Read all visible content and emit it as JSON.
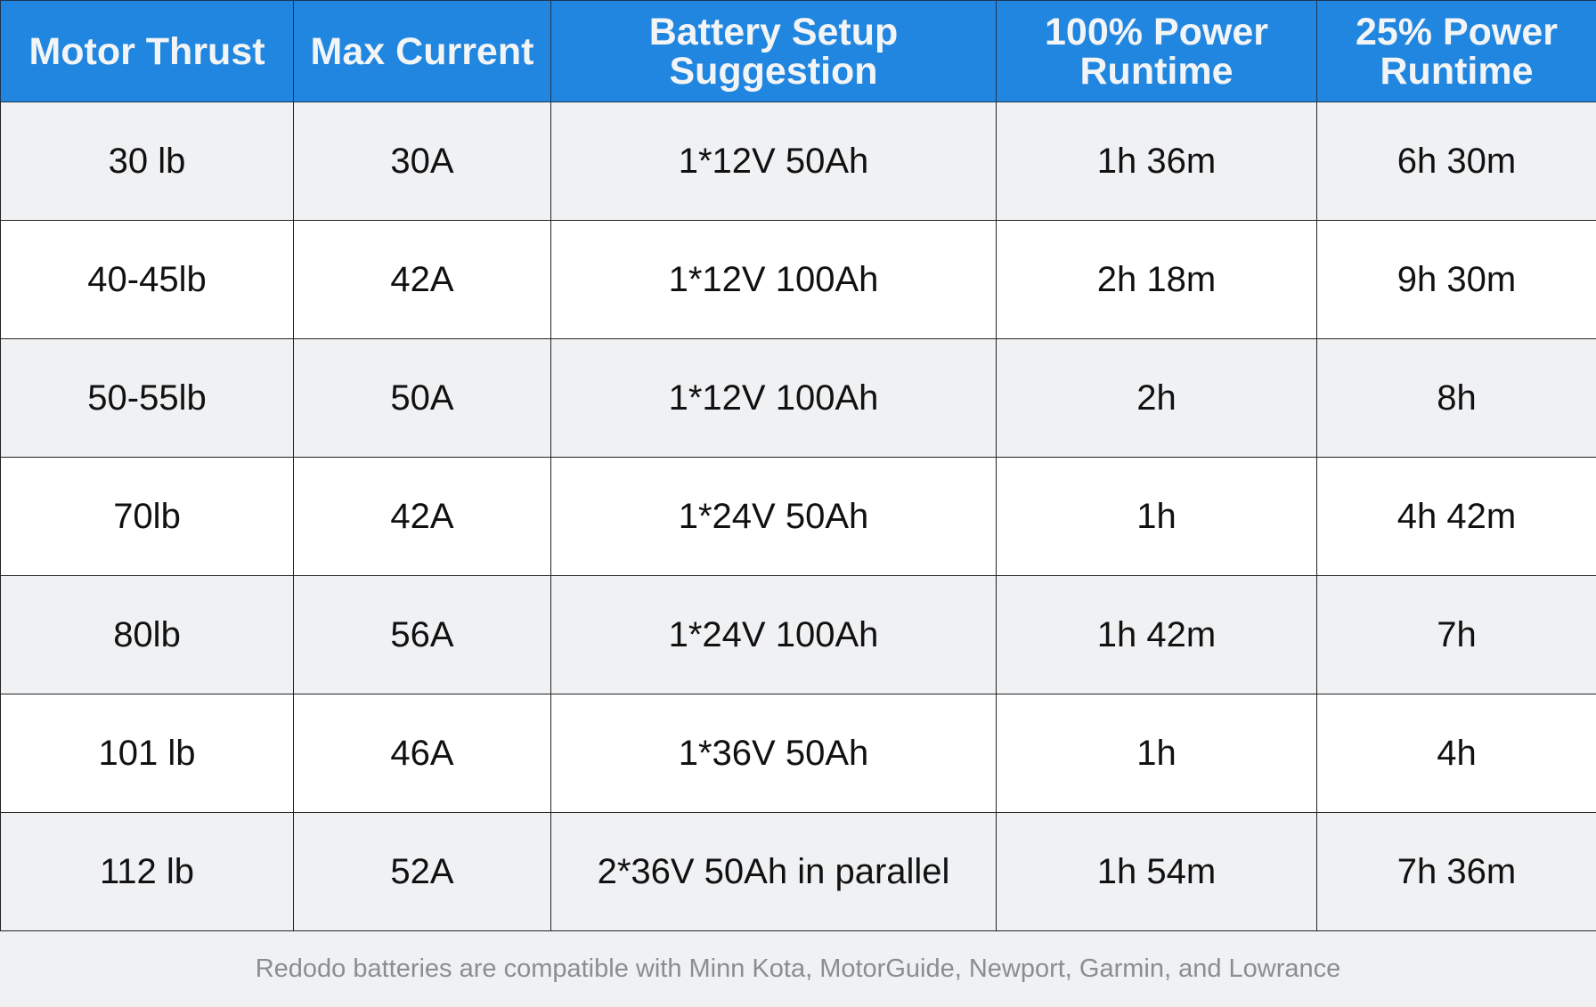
{
  "table": {
    "headers": [
      "Motor Thrust",
      "Max Current",
      "Battery Setup Suggestion",
      "100% Power Runtime",
      "25% Power Runtime"
    ],
    "rows": [
      [
        "30 lb",
        "30A",
        "1*12V 50Ah",
        "1h 36m",
        "6h 30m"
      ],
      [
        "40-45lb",
        "42A",
        "1*12V 100Ah",
        "2h 18m",
        "9h 30m"
      ],
      [
        "50-55lb",
        "50A",
        "1*12V 100Ah",
        "2h",
        "8h"
      ],
      [
        "70lb",
        "42A",
        "1*24V 50Ah",
        "1h",
        "4h 42m"
      ],
      [
        "80lb",
        "56A",
        "1*24V 100Ah",
        "1h 42m",
        "7h"
      ],
      [
        "101 lb",
        "46A",
        "1*36V 50Ah",
        "1h",
        "4h"
      ],
      [
        "112 lb",
        "52A",
        "2*36V 50Ah in parallel",
        "1h 54m",
        "7h 36m"
      ]
    ]
  },
  "footer": "Redodo batteries are compatible with Minn Kota, MotorGuide, Newport, Garmin, and Lowrance",
  "colors": {
    "header_bg": "#2186df",
    "row_alt": "#f0f1f3"
  }
}
